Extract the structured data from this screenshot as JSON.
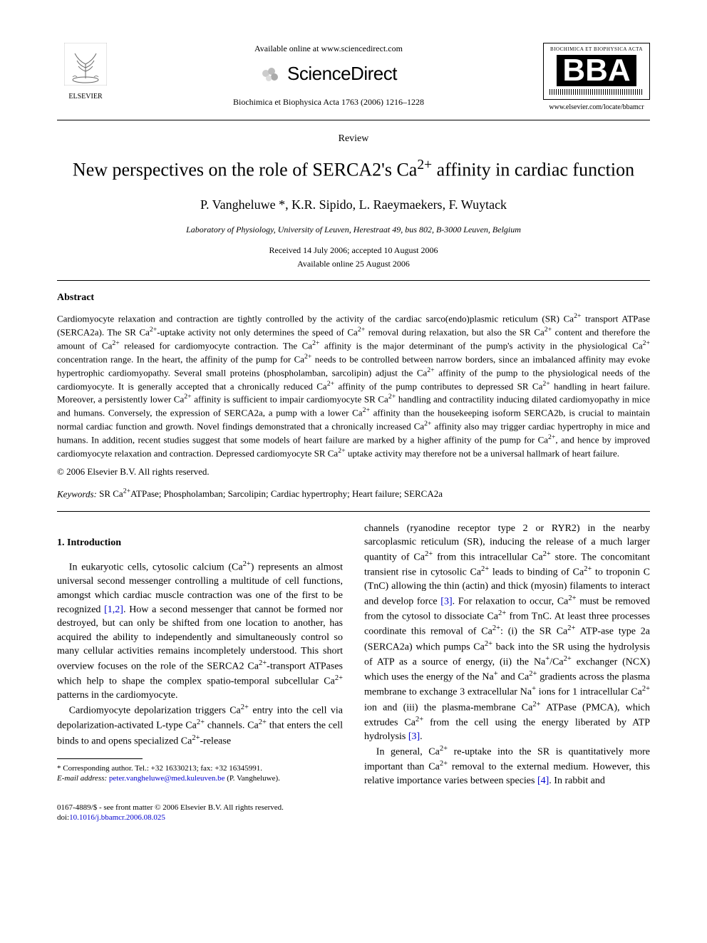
{
  "header": {
    "elsevier_label": "ELSEVIER",
    "available_online": "Available online at www.sciencedirect.com",
    "sciencedirect_text": "ScienceDirect",
    "citation": "Biochimica et Biophysica Acta 1763 (2006) 1216–1228",
    "bba_top": "BIOCHIMICA ET BIOPHYSICA ACTA",
    "bba_main": "BBA",
    "bba_url": "www.elsevier.com/locate/bbamcr"
  },
  "article": {
    "type_label": "Review",
    "title_html": "New perspectives on the role of SERCA2's Ca<sup>2+</sup> affinity in cardiac function",
    "authors": "P. Vangheluwe *, K.R. Sipido, L. Raeymaekers, F. Wuytack",
    "affiliation": "Laboratory of Physiology, University of Leuven, Herestraat 49, bus 802, B-3000 Leuven, Belgium",
    "dates_line1": "Received 14 July 2006; accepted 10 August 2006",
    "dates_line2": "Available online 25 August 2006"
  },
  "abstract": {
    "heading": "Abstract",
    "body_html": "Cardiomyocyte relaxation and contraction are tightly controlled by the activity of the cardiac sarco(endo)plasmic reticulum (SR) Ca<sup>2+</sup> transport ATPase (SERCA2a). The SR Ca<sup>2+</sup>-uptake activity not only determines the speed of Ca<sup>2+</sup> removal during relaxation, but also the SR Ca<sup>2+</sup> content and therefore the amount of Ca<sup>2+</sup> released for cardiomyocyte contraction. The Ca<sup>2+</sup> affinity is the major determinant of the pump's activity in the physiological Ca<sup>2+</sup> concentration range. In the heart, the affinity of the pump for Ca<sup>2+</sup> needs to be controlled between narrow borders, since an imbalanced affinity may evoke hypertrophic cardiomyopathy. Several small proteins (phospholamban, sarcolipin) adjust the Ca<sup>2+</sup> affinity of the pump to the physiological needs of the cardiomyocyte. It is generally accepted that a chronically reduced Ca<sup>2+</sup> affinity of the pump contributes to depressed SR Ca<sup>2+</sup> handling in heart failure. Moreover, a persistently lower Ca<sup>2+</sup> affinity is sufficient to impair cardiomyocyte SR Ca<sup>2+</sup> handling and contractility inducing dilated cardiomyopathy in mice and humans. Conversely, the expression of SERCA2a, a pump with a lower Ca<sup>2+</sup> affinity than the housekeeping isoform SERCA2b, is crucial to maintain normal cardiac function and growth. Novel findings demonstrated that a chronically increased Ca<sup>2+</sup> affinity also may trigger cardiac hypertrophy in mice and humans. In addition, recent studies suggest that some models of heart failure are marked by a higher affinity of the pump for Ca<sup>2+</sup>, and hence by improved cardiomyocyte relaxation and contraction. Depressed cardiomyocyte SR Ca<sup>2+</sup> uptake activity may therefore not be a universal hallmark of heart failure.",
    "copyright": "© 2006 Elsevier B.V. All rights reserved.",
    "keywords_label": "Keywords:",
    "keywords_html": " SR Ca<sup>2+</sup>ATPase; Phospholamban; Sarcolipin; Cardiac hypertrophy; Heart failure; SERCA2a"
  },
  "intro": {
    "heading": "1. Introduction",
    "p1_html": "In eukaryotic cells, cytosolic calcium (Ca<sup>2+</sup>) represents an almost universal second messenger controlling a multitude of cell functions, amongst which cardiac muscle contraction was one of the first to be recognized <span class=\"cite\">[1,2]</span>. How a second messenger that cannot be formed nor destroyed, but can only be shifted from one location to another, has acquired the ability to independently and simultaneously control so many cellular activities remains incompletely understood. This short overview focuses on the role of the SERCA2 Ca<sup>2+</sup>-transport ATPases which help to shape the complex spatio-temporal subcellular Ca<sup>2+</sup> patterns in the cardiomyocyte.",
    "p2_html": "Cardiomyocyte depolarization triggers Ca<sup>2+</sup> entry into the cell via depolarization-activated L-type Ca<sup>2+</sup> channels. Ca<sup>2+</sup> that enters the cell binds to and opens specialized Ca<sup>2+</sup>-release",
    "p3_html": "channels (ryanodine receptor type 2 or RYR2) in the nearby sarcoplasmic reticulum (SR), inducing the release of a much larger quantity of Ca<sup>2+</sup> from this intracellular Ca<sup>2+</sup> store. The concomitant transient rise in cytosolic Ca<sup>2+</sup> leads to binding of Ca<sup>2+</sup> to troponin C (TnC) allowing the thin (actin) and thick (myosin) filaments to interact and develop force <span class=\"cite\">[3]</span>. For relaxation to occur, Ca<sup>2+</sup> must be removed from the cytosol to dissociate Ca<sup>2+</sup> from TnC. At least three processes coordinate this removal of Ca<sup>2+</sup>: (i) the SR Ca<sup>2+</sup> ATP-ase type 2a (SERCA2a) which pumps Ca<sup>2+</sup> back into the SR using the hydrolysis of ATP as a source of energy, (ii) the Na<sup>+</sup>/Ca<sup>2+</sup> exchanger (NCX) which uses the energy of the Na<sup>+</sup> and Ca<sup>2+</sup> gradients across the plasma membrane to exchange 3 extracellular Na<sup>+</sup> ions for 1 intracellular Ca<sup>2+</sup> ion and (iii) the plasma-membrane Ca<sup>2+</sup> ATPase (PMCA), which extrudes Ca<sup>2+</sup> from the cell using the energy liberated by ATP hydrolysis <span class=\"cite\">[3]</span>.",
    "p4_html": "In general, Ca<sup>2+</sup> re-uptake into the SR is quantitatively more important than Ca<sup>2+</sup> removal to the external medium. However, this relative importance varies between species <span class=\"cite\">[4]</span>. In rabbit and"
  },
  "footnote": {
    "corr": "* Corresponding author. Tel.: +32 16330213; fax: +32 16345991.",
    "email_label": "E-mail address:",
    "email": "peter.vangheluwe@med.kuleuven.be",
    "email_suffix": " (P. Vangheluwe)."
  },
  "footer": {
    "front_matter": "0167-4889/$ - see front matter © 2006 Elsevier B.V. All rights reserved.",
    "doi_label": "doi:",
    "doi": "10.1016/j.bbamcr.2006.08.025"
  },
  "colors": {
    "link": "#0000cc",
    "text": "#000000",
    "background": "#ffffff"
  }
}
